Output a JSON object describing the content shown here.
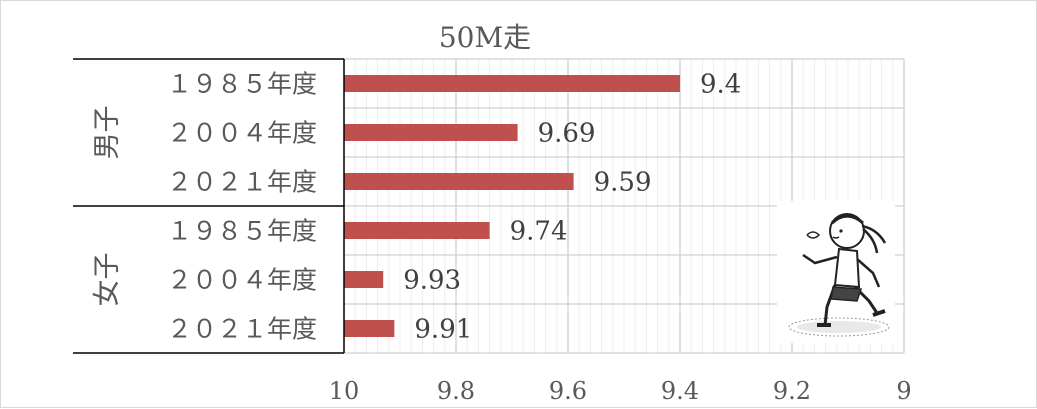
{
  "chart_data": {
    "type": "bar",
    "orientation": "horizontal",
    "title": "50M走",
    "xlim": [
      10,
      9
    ],
    "x_axis_reversed": true,
    "x_ticks": [
      "10",
      "9.8",
      "9.6",
      "9.4",
      "9.2",
      "9"
    ],
    "grid": true,
    "bar_color": "#c0504d",
    "groups": [
      {
        "name": "男子",
        "categories": [
          "１９８５年度",
          "２００４年度",
          "２０２１年度"
        ],
        "values": [
          9.4,
          9.69,
          9.59
        ],
        "labels": [
          "9.4",
          "9.69",
          "9.59"
        ]
      },
      {
        "name": "女子",
        "categories": [
          "１９８５年度",
          "２００４年度",
          "２０２１年度"
        ],
        "values": [
          9.74,
          9.93,
          9.91
        ],
        "labels": [
          "9.74",
          "9.93",
          "9.91"
        ]
      }
    ]
  },
  "decorations": {
    "illustration": "running-girl-icon"
  }
}
